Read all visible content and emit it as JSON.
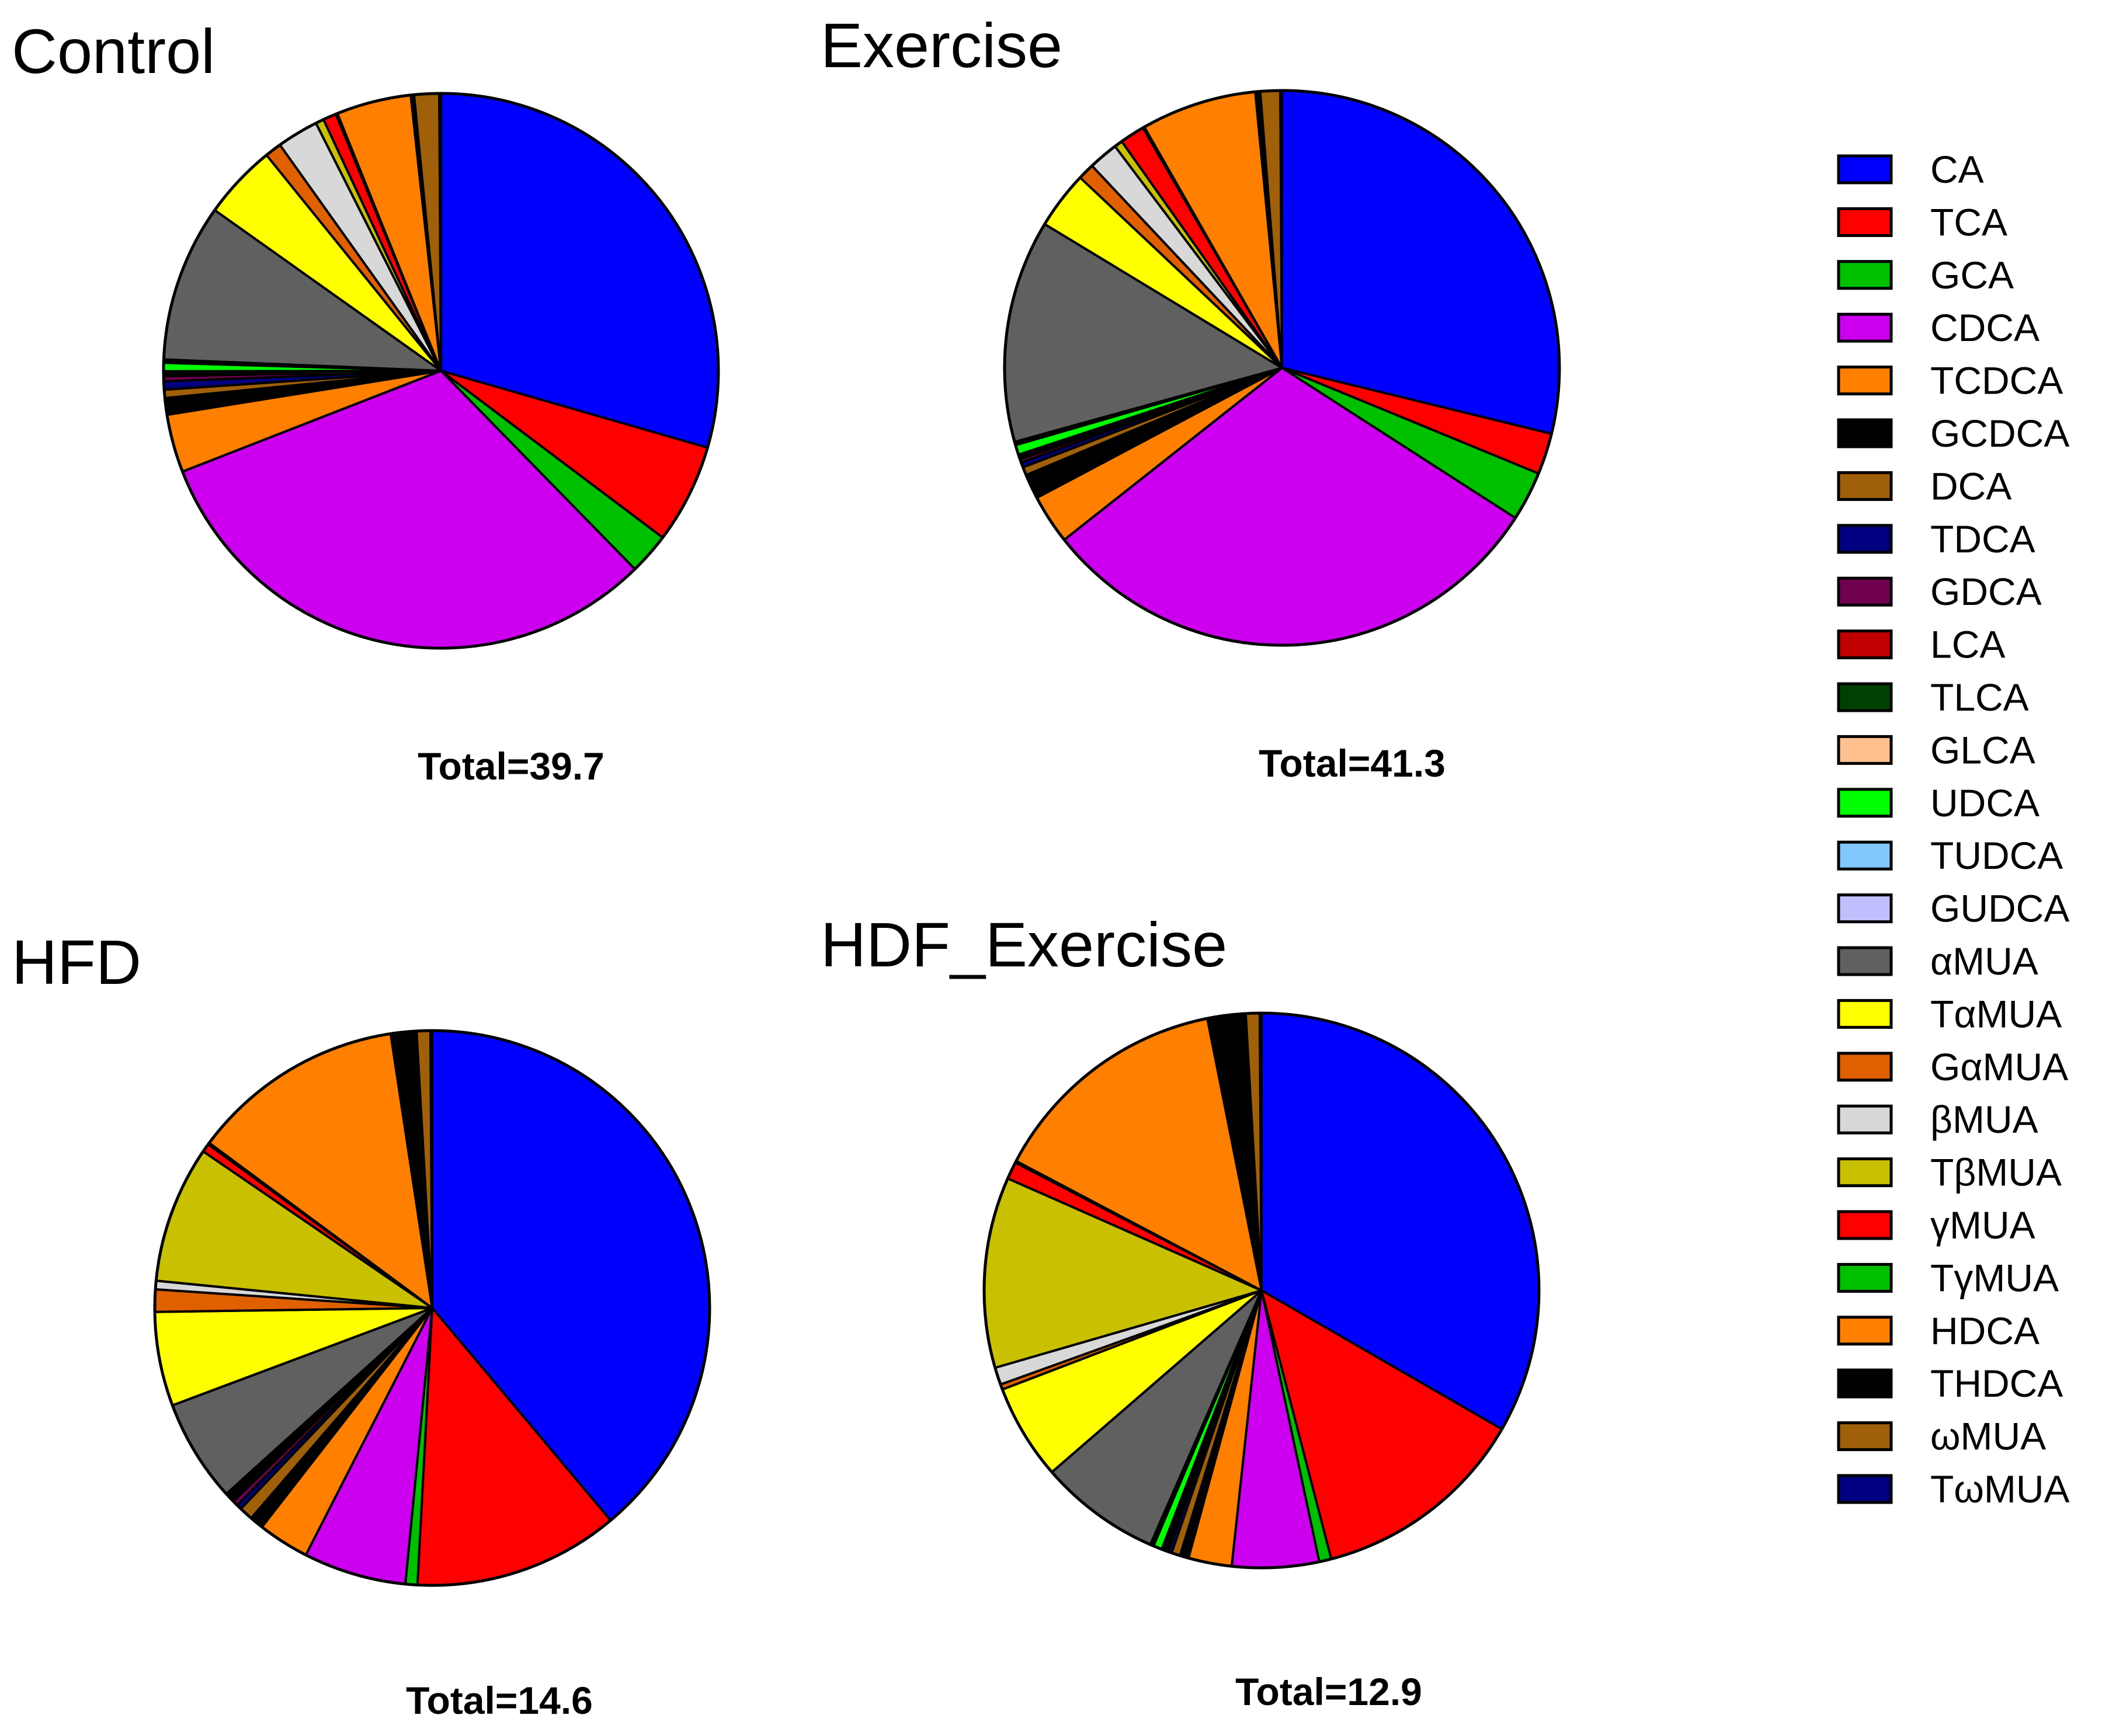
{
  "chart_data": {
    "type": "pie",
    "legend": {
      "position": "right",
      "entries": [
        {
          "name": "CA",
          "color": "#0000FF"
        },
        {
          "name": "TCA",
          "color": "#FF0000"
        },
        {
          "name": "GCA",
          "color": "#00C000"
        },
        {
          "name": "CDCA",
          "color": "#CC00EE"
        },
        {
          "name": "TCDCA",
          "color": "#FF8000"
        },
        {
          "name": "GCDCA",
          "color": "#000000"
        },
        {
          "name": "DCA",
          "color": "#A0600A"
        },
        {
          "name": "TDCA",
          "color": "#000080"
        },
        {
          "name": "GDCA",
          "color": "#700050"
        },
        {
          "name": "LCA",
          "color": "#C00000"
        },
        {
          "name": "TLCA",
          "color": "#004000"
        },
        {
          "name": "GLCA",
          "color": "#FFC090"
        },
        {
          "name": "UDCA",
          "color": "#00FF00"
        },
        {
          "name": "TUDCA",
          "color": "#80C8FF"
        },
        {
          "name": "GUDCA",
          "color": "#C0C0FF"
        },
        {
          "name": "αMUA",
          "color": "#606060"
        },
        {
          "name": "TαMUA",
          "color": "#FFFF00"
        },
        {
          "name": "GαMUA",
          "color": "#E06000"
        },
        {
          "name": "βMUA",
          "color": "#D8D8D8"
        },
        {
          "name": "TβMUA",
          "color": "#C8C000"
        },
        {
          "name": "γMUA",
          "color": "#FF0000"
        },
        {
          "name": "TγMUA",
          "color": "#00C000"
        },
        {
          "name": "HDCA",
          "color": "#FF8000"
        },
        {
          "name": "THDCA",
          "color": "#000000"
        },
        {
          "name": "ωMUA",
          "color": "#A0600A"
        },
        {
          "name": "TωMUA",
          "color": "#000080"
        }
      ]
    },
    "panels": [
      {
        "title": "Control",
        "total_label": "Total=39.7",
        "slices": [
          {
            "name": "CA",
            "value": 30.5
          },
          {
            "name": "TCA",
            "value": 6.0
          },
          {
            "name": "GCA",
            "value": 2.5
          },
          {
            "name": "CDCA",
            "value": 32.5
          },
          {
            "name": "TCDCA",
            "value": 3.5
          },
          {
            "name": "GCDCA",
            "value": 1.0
          },
          {
            "name": "DCA",
            "value": 0.5
          },
          {
            "name": "TDCA",
            "value": 0.5
          },
          {
            "name": "GDCA",
            "value": 0.3
          },
          {
            "name": "LCA",
            "value": 0.1
          },
          {
            "name": "TLCA",
            "value": 0.1
          },
          {
            "name": "GLCA",
            "value": 0.1
          },
          {
            "name": "UDCA",
            "value": 0.5
          },
          {
            "name": "TUDCA",
            "value": 0.1
          },
          {
            "name": "GUDCA",
            "value": 0.1
          },
          {
            "name": "αMUA",
            "value": 9.5
          },
          {
            "name": "TαMUA",
            "value": 4.5
          },
          {
            "name": "GαMUA",
            "value": 1.0
          },
          {
            "name": "βMUA",
            "value": 2.5
          },
          {
            "name": "TβMUA",
            "value": 0.5
          },
          {
            "name": "γMUA",
            "value": 0.8
          },
          {
            "name": "TγMUA",
            "value": 0.1
          },
          {
            "name": "HDCA",
            "value": 4.5
          },
          {
            "name": "THDCA",
            "value": 0.2
          },
          {
            "name": "ωMUA",
            "value": 1.5
          },
          {
            "name": "TωMUA",
            "value": 0.1
          }
        ]
      },
      {
        "title": "Exercise",
        "total_label": "Total=41.3",
        "slices": [
          {
            "name": "CA",
            "value": 30.0
          },
          {
            "name": "TCA",
            "value": 2.5
          },
          {
            "name": "GCA",
            "value": 3.0
          },
          {
            "name": "CDCA",
            "value": 31.5
          },
          {
            "name": "TCDCA",
            "value": 3.0
          },
          {
            "name": "GCDCA",
            "value": 1.5
          },
          {
            "name": "DCA",
            "value": 0.5
          },
          {
            "name": "TDCA",
            "value": 0.3
          },
          {
            "name": "GDCA",
            "value": 0.2
          },
          {
            "name": "LCA",
            "value": 0.1
          },
          {
            "name": "TLCA",
            "value": 0.1
          },
          {
            "name": "GLCA",
            "value": 0.1
          },
          {
            "name": "UDCA",
            "value": 0.6
          },
          {
            "name": "TUDCA",
            "value": 0.1
          },
          {
            "name": "GUDCA",
            "value": 0.1
          },
          {
            "name": "αMUA",
            "value": 13.5
          },
          {
            "name": "TαMUA",
            "value": 3.5
          },
          {
            "name": "GαMUA",
            "value": 1.0
          },
          {
            "name": "βMUA",
            "value": 1.8
          },
          {
            "name": "TβMUA",
            "value": 0.5
          },
          {
            "name": "γMUA",
            "value": 1.5
          },
          {
            "name": "TγMUA",
            "value": 0.1
          },
          {
            "name": "HDCA",
            "value": 7.0
          },
          {
            "name": "THDCA",
            "value": 0.3
          },
          {
            "name": "ωMUA",
            "value": 1.2
          },
          {
            "name": "TωMUA",
            "value": 0.1
          }
        ]
      },
      {
        "title": "HFD",
        "total_label": "Total=14.6",
        "slices": [
          {
            "name": "CA",
            "value": 39.0
          },
          {
            "name": "TCA",
            "value": 12.0
          },
          {
            "name": "GCA",
            "value": 0.7
          },
          {
            "name": "CDCA",
            "value": 6.0
          },
          {
            "name": "TCDCA",
            "value": 3.0
          },
          {
            "name": "GCDCA",
            "value": 0.8
          },
          {
            "name": "DCA",
            "value": 0.8
          },
          {
            "name": "TDCA",
            "value": 0.3
          },
          {
            "name": "GDCA",
            "value": 0.3
          },
          {
            "name": "LCA",
            "value": 0.1
          },
          {
            "name": "TLCA",
            "value": 0.1
          },
          {
            "name": "GLCA",
            "value": 0.1
          },
          {
            "name": "UDCA",
            "value": 0.1
          },
          {
            "name": "TUDCA",
            "value": 0.1
          },
          {
            "name": "GUDCA",
            "value": 0.1
          },
          {
            "name": "αMUA",
            "value": 6.0
          },
          {
            "name": "TαMUA",
            "value": 5.5
          },
          {
            "name": "GαMUA",
            "value": 1.3
          },
          {
            "name": "βMUA",
            "value": 0.5
          },
          {
            "name": "TβMUA",
            "value": 8.0
          },
          {
            "name": "γMUA",
            "value": 0.5
          },
          {
            "name": "TγMUA",
            "value": 0.1
          },
          {
            "name": "HDCA",
            "value": 12.5
          },
          {
            "name": "THDCA",
            "value": 1.5
          },
          {
            "name": "ωMUA",
            "value": 0.8
          },
          {
            "name": "TωMUA",
            "value": 0.1
          }
        ]
      },
      {
        "title": "HDF_Exercise",
        "total_label": "Total=12.9",
        "slices": [
          {
            "name": "CA",
            "value": 33.0
          },
          {
            "name": "TCA",
            "value": 12.5
          },
          {
            "name": "GCA",
            "value": 0.7
          },
          {
            "name": "CDCA",
            "value": 5.0
          },
          {
            "name": "TCDCA",
            "value": 2.5
          },
          {
            "name": "GCDCA",
            "value": 0.5
          },
          {
            "name": "DCA",
            "value": 0.5
          },
          {
            "name": "TDCA",
            "value": 0.2
          },
          {
            "name": "GDCA",
            "value": 0.1
          },
          {
            "name": "LCA",
            "value": 0.1
          },
          {
            "name": "TLCA",
            "value": 0.1
          },
          {
            "name": "GLCA",
            "value": 0.1
          },
          {
            "name": "UDCA",
            "value": 0.5
          },
          {
            "name": "TUDCA",
            "value": 0.1
          },
          {
            "name": "GUDCA",
            "value": 0.1
          },
          {
            "name": "αMUA",
            "value": 7.0
          },
          {
            "name": "TαMUA",
            "value": 5.5
          },
          {
            "name": "GαMUA",
            "value": 0.3
          },
          {
            "name": "βMUA",
            "value": 1.0
          },
          {
            "name": "TβMUA",
            "value": 11.0
          },
          {
            "name": "γMUA",
            "value": 1.0
          },
          {
            "name": "TγMUA",
            "value": 0.1
          },
          {
            "name": "HDCA",
            "value": 14.0
          },
          {
            "name": "THDCA",
            "value": 2.2
          },
          {
            "name": "ωMUA",
            "value": 0.8
          },
          {
            "name": "TωMUA",
            "value": 0.1
          }
        ]
      }
    ]
  }
}
